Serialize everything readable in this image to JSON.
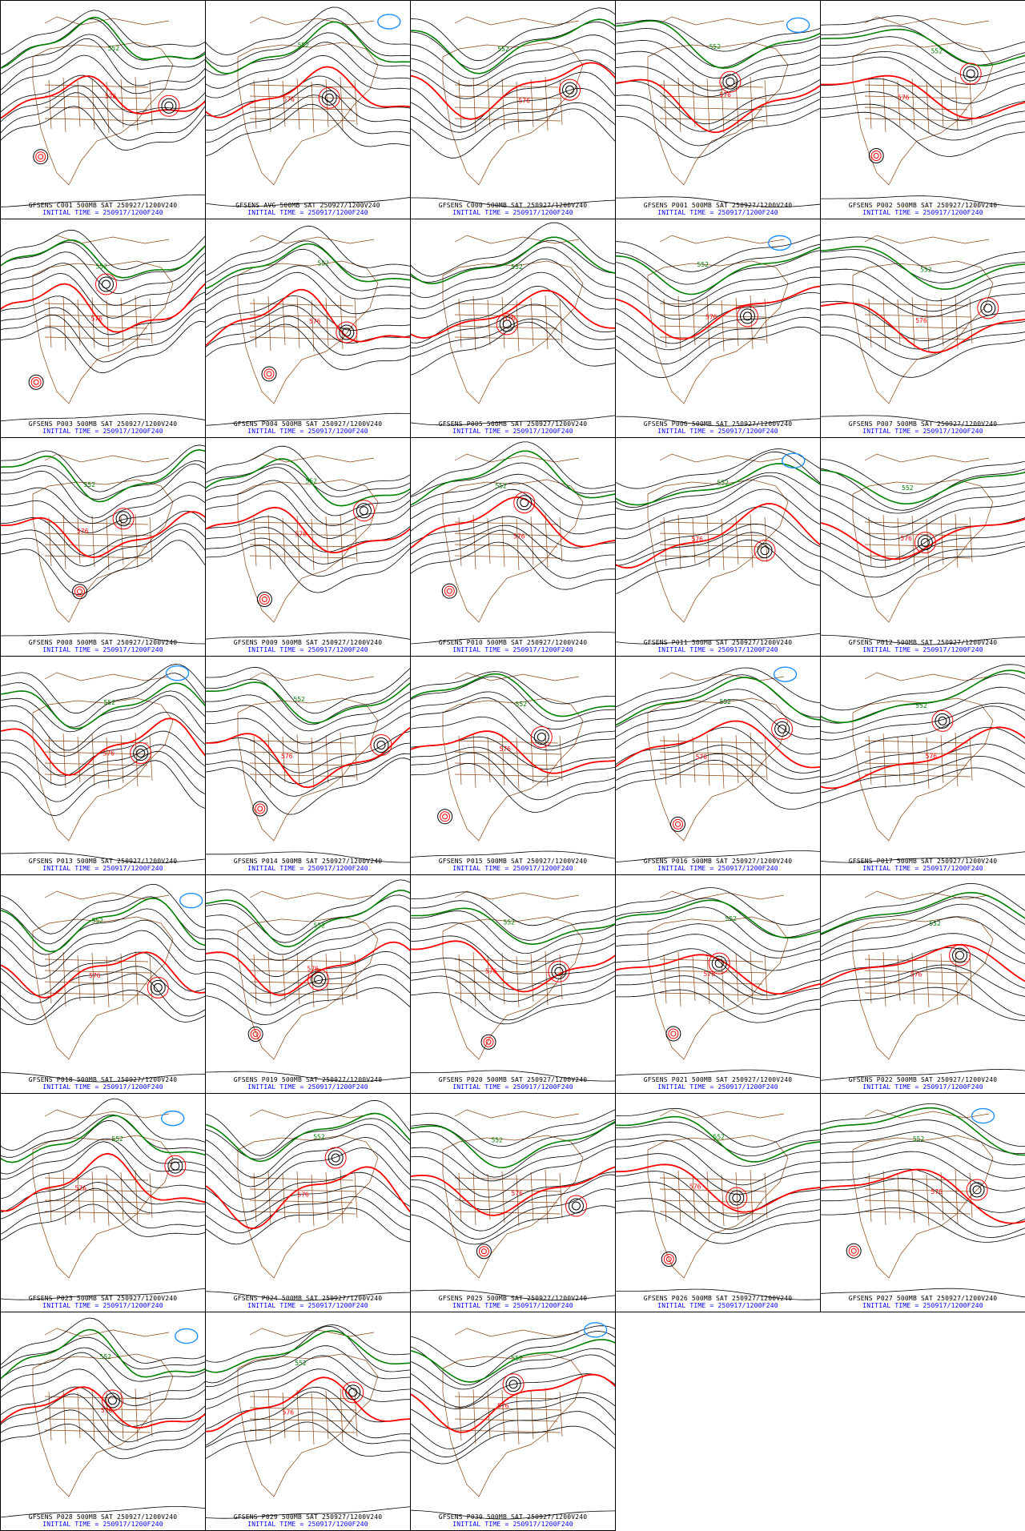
{
  "colors": {
    "height_contour": "#000000",
    "contour_552": "#008000",
    "contour_576": "#ff0000",
    "contour_528": "#1e90ff",
    "map_borders": "#8b4513",
    "caption_blue": "#0000ff"
  },
  "icons": [
    "contour-line",
    "map-border",
    "low-center-circle"
  ],
  "contour_labels": [
    "552",
    "576",
    "528"
  ],
  "initial_time_line": "INITIAL TIME = 250917/1200F240",
  "panels": [
    {
      "title": "GFSENS C001 500MB SAT 250927/1200V240",
      "init": "INITIAL TIME = 250917/1200F240"
    },
    {
      "title": "GFSENS AVG 500MB SAT 250927/1200V240",
      "init": "INITIAL TIME = 250917/1200F240"
    },
    {
      "title": "GFSENS C000 500MB SAT 250927/1200V240",
      "init": "INITIAL TIME = 250917/1200F240"
    },
    {
      "title": "GFSENS P001 500MB SAT 250927/1200V240",
      "init": "INITIAL TIME = 250917/1200F240"
    },
    {
      "title": "GFSENS P002 500MB SAT 250927/1200V240",
      "init": "INITIAL TIME = 250917/1200F240"
    },
    {
      "title": "GFSENS P003 500MB SAT 250927/1200V240",
      "init": "INITIAL TIME = 250917/1200F240"
    },
    {
      "title": "GFSENS P004 500MB SAT 250927/1200V240",
      "init": "INITIAL TIME = 250917/1200F240"
    },
    {
      "title": "GFSENS P005 500MB SAT 250927/1200V240",
      "init": "INITIAL TIME = 250917/1200F240"
    },
    {
      "title": "GFSENS P006 500MB SAT 250927/1200V240",
      "init": "INITIAL TIME = 250917/1200F240"
    },
    {
      "title": "GFSENS P007 500MB SAT 250927/1200V240",
      "init": "INITIAL TIME = 250917/1200F240"
    },
    {
      "title": "GFSENS P008 500MB SAT 250927/1200V240",
      "init": "INITIAL TIME = 250917/1200F240"
    },
    {
      "title": "GFSENS P009 500MB SAT 250927/1200V240",
      "init": "INITIAL TIME = 250917/1200F240"
    },
    {
      "title": "GFSENS P010 500MB SAT 250927/1200V240",
      "init": "INITIAL TIME = 250917/1200F240"
    },
    {
      "title": "GFSENS P011 500MB SAT 250927/1200V240",
      "init": "INITIAL TIME = 250917/1200F240"
    },
    {
      "title": "GFSENS P012 500MB SAT 250927/1200V240",
      "init": "INITIAL TIME = 250917/1200F240"
    },
    {
      "title": "GFSENS P013 500MB SAT 250927/1200V240",
      "init": "INITIAL TIME = 250917/1200F240"
    },
    {
      "title": "GFSENS P014 500MB SAT 250927/1200V240",
      "init": "INITIAL TIME = 250917/1200F240"
    },
    {
      "title": "GFSENS P015 500MB SAT 250927/1200V240",
      "init": "INITIAL TIME = 250917/1200F240"
    },
    {
      "title": "GFSENS P016 500MB SAT 250927/1200V240",
      "init": "INITIAL TIME = 250917/1200F240"
    },
    {
      "title": "GFSENS P017 500MB SAT 250927/1200V240",
      "init": "INITIAL TIME = 250917/1200F240"
    },
    {
      "title": "GFSENS P018 500MB SAT 250927/1200V240",
      "init": "INITIAL TIME = 250917/1200F240"
    },
    {
      "title": "GFSENS P019 500MB SAT 250927/1200V240",
      "init": "INITIAL TIME = 250917/1200F240"
    },
    {
      "title": "GFSENS P020 500MB SAT 250927/1200V240",
      "init": "INITIAL TIME = 250917/1200F240"
    },
    {
      "title": "GFSENS P021 500MB SAT 250927/1200V240",
      "init": "INITIAL TIME = 250917/1200F240"
    },
    {
      "title": "GFSENS P022 500MB SAT 250927/1200V240",
      "init": "INITIAL TIME = 250917/1200F240"
    },
    {
      "title": "GFSENS P023 500MB SAT 250927/1200V240",
      "init": "INITIAL TIME = 250917/1200F240"
    },
    {
      "title": "GFSENS P024 500MB SAT 250927/1200V240",
      "init": "INITIAL TIME = 250917/1200F240"
    },
    {
      "title": "GFSENS P025 500MB SAT 250927/1200V240",
      "init": "INITIAL TIME = 250917/1200F240"
    },
    {
      "title": "GFSENS P026 500MB SAT 250927/1200V240",
      "init": "INITIAL TIME = 250917/1200F240"
    },
    {
      "title": "GFSENS P027 500MB SAT 250927/1200V240",
      "init": "INITIAL TIME = 250917/1200F240"
    },
    {
      "title": "GFSENS P028 500MB SAT 250927/1200V240",
      "init": "INITIAL TIME = 250917/1200F240"
    },
    {
      "title": "GFSENS P029 500MB SAT 250927/1200V240",
      "init": "INITIAL TIME = 250917/1200F240"
    },
    {
      "title": "GFSENS P030 500MB SAT 250927/1200V240",
      "init": "INITIAL TIME = 250917/1200F240"
    }
  ]
}
